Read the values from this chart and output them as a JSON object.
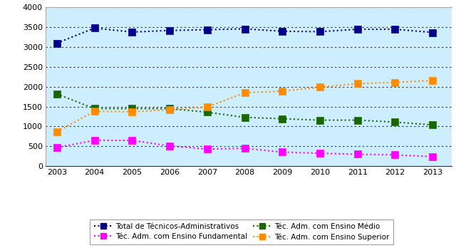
{
  "years": [
    2003,
    2004,
    2005,
    2006,
    2007,
    2008,
    2009,
    2010,
    2011,
    2012,
    2013
  ],
  "total": [
    3100,
    3480,
    3380,
    3420,
    3440,
    3460,
    3400,
    3390,
    3450,
    3450,
    3370
  ],
  "fundamental": [
    470,
    650,
    650,
    510,
    430,
    450,
    355,
    325,
    300,
    285,
    240
  ],
  "medio": [
    1820,
    1450,
    1450,
    1450,
    1360,
    1230,
    1195,
    1160,
    1160,
    1110,
    1040
  ],
  "superior": [
    870,
    1380,
    1370,
    1420,
    1490,
    1850,
    1890,
    1990,
    2080,
    2110,
    2160
  ],
  "bg_color": "#cceeff",
  "ylim": [
    0,
    4000
  ],
  "yticks": [
    0,
    500,
    1000,
    1500,
    2000,
    2500,
    3000,
    3500,
    4000
  ],
  "legend_labels": [
    "Total de Técnicos-Administrativos",
    "Téc. Adm. com Ensino Fundamental",
    "Téc. Adm. com Ensino Médio",
    "Téc. Adm. com Ensino Superior"
  ],
  "line_colors": [
    "#00008B",
    "#FF00FF",
    "#1a6600",
    "#FF8C00"
  ],
  "grid_color": "#333333",
  "figsize": [
    6.4,
    3.48
  ],
  "dpi": 100
}
